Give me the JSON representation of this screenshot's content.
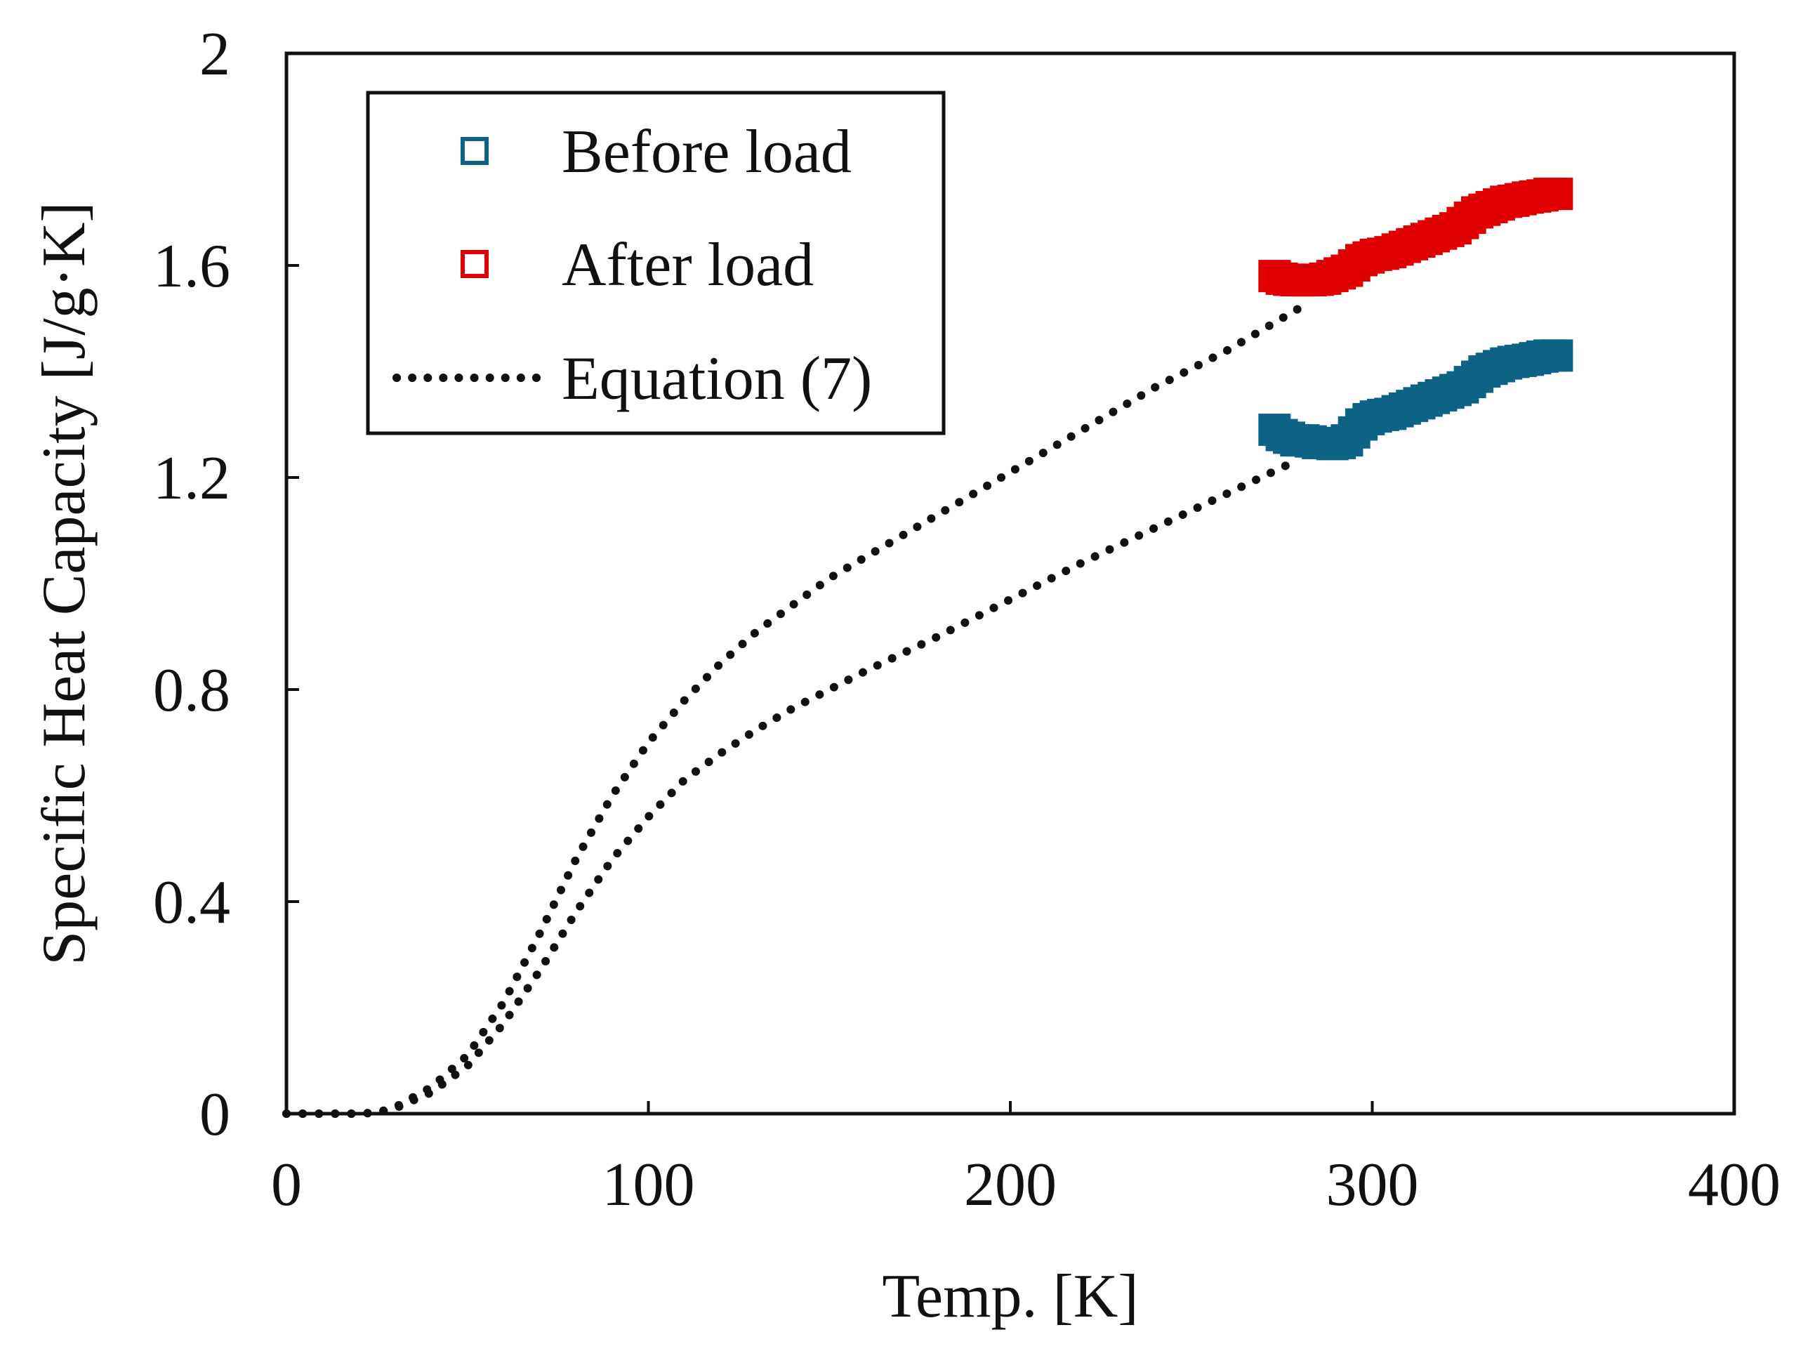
{
  "chart_data": {
    "type": "scatter",
    "title": "",
    "xlabel": "Temp. [K]",
    "ylabel": "Specific Heat Capacity [J/g·K]",
    "xlim": [
      0,
      400
    ],
    "ylim": [
      0,
      2
    ],
    "xticks": [
      "0",
      "100",
      "200",
      "300",
      "400"
    ],
    "yticks": [
      "0",
      "0.4",
      "0.8",
      "1.2",
      "1.6",
      "2"
    ],
    "grid": false,
    "legend_position": "top-left",
    "legend": [
      "Before load",
      "After load",
      "Equation (7)"
    ],
    "series": [
      {
        "name": "Before load",
        "marker": "square",
        "color": "#0E6385",
        "x": [
          273,
          275,
          277,
          279,
          281,
          283,
          285,
          287,
          289,
          291,
          293,
          295,
          297,
          299,
          301,
          303,
          305,
          307,
          309,
          311,
          313,
          315,
          317,
          319,
          321,
          323,
          325,
          327,
          329,
          331,
          333,
          335,
          337,
          339,
          341,
          343,
          345,
          347,
          349,
          351
        ],
        "y": [
          1.29,
          1.28,
          1.275,
          1.27,
          1.27,
          1.268,
          1.265,
          1.265,
          1.263,
          1.265,
          1.27,
          1.285,
          1.3,
          1.31,
          1.315,
          1.318,
          1.32,
          1.325,
          1.33,
          1.335,
          1.34,
          1.345,
          1.35,
          1.355,
          1.36,
          1.365,
          1.37,
          1.38,
          1.39,
          1.4,
          1.405,
          1.41,
          1.415,
          1.418,
          1.42,
          1.422,
          1.425,
          1.428,
          1.43,
          1.43
        ]
      },
      {
        "name": "After load",
        "marker": "square",
        "color": "#E00000",
        "x": [
          273,
          275,
          277,
          279,
          281,
          283,
          285,
          287,
          289,
          291,
          293,
          295,
          297,
          299,
          301,
          303,
          305,
          307,
          309,
          311,
          313,
          315,
          317,
          319,
          321,
          323,
          325,
          327,
          329,
          331,
          333,
          335,
          337,
          339,
          341,
          343,
          345,
          347,
          349,
          351
        ],
        "y": [
          1.58,
          1.575,
          1.573,
          1.572,
          1.572,
          1.572,
          1.573,
          1.575,
          1.58,
          1.585,
          1.59,
          1.6,
          1.61,
          1.615,
          1.62,
          1.622,
          1.625,
          1.63,
          1.635,
          1.64,
          1.645,
          1.65,
          1.655,
          1.66,
          1.665,
          1.67,
          1.68,
          1.69,
          1.7,
          1.705,
          1.71,
          1.715,
          1.72,
          1.722,
          1.725,
          1.728,
          1.73,
          1.732,
          1.735,
          1.735
        ]
      },
      {
        "name": "Equation (7) (before load)",
        "line": "dotted",
        "color": "#111111",
        "x": [
          0,
          10,
          20,
          25,
          30,
          40,
          50,
          60,
          70,
          80,
          90,
          100,
          110,
          120,
          130,
          140,
          150,
          160,
          180,
          200,
          220,
          240,
          260,
          280
        ],
        "y": [
          0,
          0,
          0,
          0.002,
          0.01,
          0.04,
          0.09,
          0.17,
          0.27,
          0.38,
          0.48,
          0.56,
          0.63,
          0.68,
          0.725,
          0.765,
          0.8,
          0.835,
          0.9,
          0.97,
          1.04,
          1.105,
          1.17,
          1.235
        ]
      },
      {
        "name": "Equation (7) (after load)",
        "line": "dotted",
        "color": "#111111",
        "x": [
          0,
          10,
          20,
          25,
          30,
          40,
          50,
          60,
          70,
          80,
          90,
          100,
          110,
          120,
          130,
          140,
          150,
          160,
          180,
          200,
          220,
          240,
          260,
          280
        ],
        "y": [
          0,
          0,
          0,
          0.002,
          0.012,
          0.05,
          0.11,
          0.21,
          0.34,
          0.48,
          0.6,
          0.7,
          0.78,
          0.85,
          0.91,
          0.96,
          1.01,
          1.05,
          1.13,
          1.21,
          1.29,
          1.37,
          1.44,
          1.52
        ]
      }
    ]
  }
}
